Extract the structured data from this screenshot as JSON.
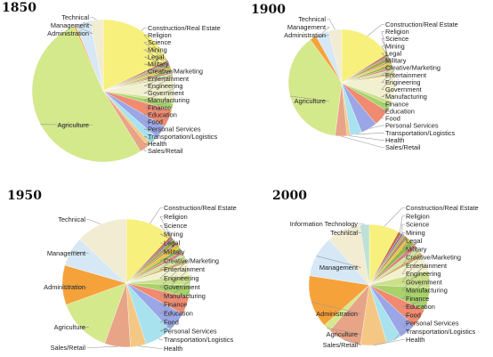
{
  "colors": {
    "Construction/Real Estate": "#f7f07c",
    "Religion": "#c46a2c",
    "Science": "#8c6ab4",
    "Mining": "#a7a73c",
    "Legal": "#b08f62",
    "Military": "#f0c030",
    "Creative/Marketing": "#8fb848",
    "Entertainment": "#e07c7c",
    "Engineering": "#cfe5a2",
    "Government": "#d4b56a",
    "Manufacturing": "#f2f1cf",
    "Finance": "#ccdf8a",
    "Education": "#a8d26a",
    "Food": "#f08a70",
    "Personal Services": "#9aa6e6",
    "Transportation/Logistics": "#a8e2ef",
    "Health": "#f4c884",
    "Sales/Retail": "#e8a486",
    "Agriculture": "#d4e88c",
    "Administration": "#f6a23a",
    "Management": "#d6e8f6",
    "Technical": "#f1ecd2",
    "Information Technology": "#bfe0d8"
  },
  "chart_data": [
    {
      "type": "pie",
      "title": "1850",
      "slices": [
        {
          "label": "Construction/Real Estate",
          "value": 18.0
        },
        {
          "label": "Religion",
          "value": 0.5
        },
        {
          "label": "Science",
          "value": 0.3
        },
        {
          "label": "Mining",
          "value": 0.5
        },
        {
          "label": "Legal",
          "value": 0.4
        },
        {
          "label": "Military",
          "value": 0.5
        },
        {
          "label": "Creative/Marketing",
          "value": 0.5
        },
        {
          "label": "Entertainment",
          "value": 0.4
        },
        {
          "label": "Engineering",
          "value": 0.5
        },
        {
          "label": "Government",
          "value": 0.4
        },
        {
          "label": "Manufacturing",
          "value": 5.0
        },
        {
          "label": "Finance",
          "value": 0.9
        },
        {
          "label": "Education",
          "value": 1.5
        },
        {
          "label": "Food",
          "value": 4.0
        },
        {
          "label": "Personal Services",
          "value": 3.0
        },
        {
          "label": "Transportation/Logistics",
          "value": 2.0
        },
        {
          "label": "Health",
          "value": 0.8
        },
        {
          "label": "Sales/Retail",
          "value": 2.0
        },
        {
          "label": "Agriculture",
          "value": 52.0
        },
        {
          "label": "Administration",
          "value": 0.4
        },
        {
          "label": "Management",
          "value": 3.5
        },
        {
          "label": "Technical",
          "value": 2.9
        }
      ],
      "labels_right": [
        "Construction/Real Estate",
        "Religion",
        "Science",
        "Mining",
        "Legal",
        "Military",
        "Creative/Marketing",
        "Entertainment",
        "Engineering",
        "Government",
        "Manufacturing",
        "Finance",
        "Education",
        "Food",
        "Personal Services",
        "Transportation/Logistics",
        "Health",
        "Sales/Retail"
      ],
      "labels_left": [
        "Technical",
        "Management",
        "Administration",
        "Agriculture"
      ]
    },
    {
      "type": "pie",
      "title": "1900",
      "slices": [
        {
          "label": "Construction/Real Estate",
          "value": 16.0
        },
        {
          "label": "Religion",
          "value": 0.6
        },
        {
          "label": "Science",
          "value": 0.4
        },
        {
          "label": "Mining",
          "value": 1.2
        },
        {
          "label": "Legal",
          "value": 0.5
        },
        {
          "label": "Military",
          "value": 0.6
        },
        {
          "label": "Creative/Marketing",
          "value": 0.9
        },
        {
          "label": "Entertainment",
          "value": 0.7
        },
        {
          "label": "Engineering",
          "value": 1.0
        },
        {
          "label": "Government",
          "value": 0.8
        },
        {
          "label": "Manufacturing",
          "value": 8.0
        },
        {
          "label": "Finance",
          "value": 1.2
        },
        {
          "label": "Education",
          "value": 2.0
        },
        {
          "label": "Food",
          "value": 5.0
        },
        {
          "label": "Personal Services",
          "value": 5.0
        },
        {
          "label": "Transportation/Logistics",
          "value": 3.5
        },
        {
          "label": "Health",
          "value": 1.0
        },
        {
          "label": "Sales/Retail",
          "value": 3.6
        },
        {
          "label": "Agriculture",
          "value": 38.0
        },
        {
          "label": "Administration",
          "value": 2.0
        },
        {
          "label": "Management",
          "value": 4.0
        },
        {
          "label": "Technical",
          "value": 4.0
        }
      ],
      "labels_right": [
        "Construction/Real Estate",
        "Religion",
        "Science",
        "Mining",
        "Legal",
        "Military",
        "Creative/Marketing",
        "Entertainment",
        "Engineering",
        "Government",
        "Manufacturing",
        "Finance",
        "Education",
        "Food",
        "Personal Services",
        "Transportation/Logistics",
        "Health",
        "Sales/Retail"
      ],
      "labels_left": [
        "Technical",
        "Management",
        "Administration",
        "Agriculture"
      ]
    },
    {
      "type": "pie",
      "title": "1950",
      "slices": [
        {
          "label": "Construction/Real Estate",
          "value": 12.0
        },
        {
          "label": "Religion",
          "value": 0.6
        },
        {
          "label": "Science",
          "value": 0.5
        },
        {
          "label": "Mining",
          "value": 1.0
        },
        {
          "label": "Legal",
          "value": 0.6
        },
        {
          "label": "Military",
          "value": 1.0
        },
        {
          "label": "Creative/Marketing",
          "value": 1.0
        },
        {
          "label": "Entertainment",
          "value": 0.8
        },
        {
          "label": "Engineering",
          "value": 1.5
        },
        {
          "label": "Government",
          "value": 1.0
        },
        {
          "label": "Manufacturing",
          "value": 3.0
        },
        {
          "label": "Finance",
          "value": 2.5
        },
        {
          "label": "Education",
          "value": 3.0
        },
        {
          "label": "Food",
          "value": 4.5
        },
        {
          "label": "Personal Services",
          "value": 5.0
        },
        {
          "label": "Transportation/Logistics",
          "value": 7.0
        },
        {
          "label": "Health",
          "value": 4.0
        },
        {
          "label": "Sales/Retail",
          "value": 6.5
        },
        {
          "label": "Agriculture",
          "value": 14.0
        },
        {
          "label": "Administration",
          "value": 10.0
        },
        {
          "label": "Management",
          "value": 7.5
        },
        {
          "label": "Technical",
          "value": 13.0
        }
      ],
      "labels_right": [
        "Construction/Real Estate",
        "Religion",
        "Science",
        "Mining",
        "Legal",
        "Military",
        "Creative/Marketing",
        "Entertainment",
        "Engineering",
        "Government",
        "Manufacturing",
        "Finance",
        "Education",
        "Food",
        "Personal Services",
        "Transportation/Logistics",
        "Health"
      ],
      "labels_left": [
        "Technical",
        "Management",
        "Administration",
        "Agriculture",
        "Sales/Retail"
      ]
    },
    {
      "type": "pie",
      "title": "2000",
      "slices": [
        {
          "label": "Construction/Real Estate",
          "value": 8.0
        },
        {
          "label": "Religion",
          "value": 0.8
        },
        {
          "label": "Science",
          "value": 0.6
        },
        {
          "label": "Mining",
          "value": 0.5
        },
        {
          "label": "Legal",
          "value": 1.0
        },
        {
          "label": "Military",
          "value": 0.8
        },
        {
          "label": "Creative/Marketing",
          "value": 1.5
        },
        {
          "label": "Entertainment",
          "value": 1.2
        },
        {
          "label": "Engineering",
          "value": 1.5
        },
        {
          "label": "Government",
          "value": 1.3
        },
        {
          "label": "Manufacturing",
          "value": 4.0
        },
        {
          "label": "Finance",
          "value": 4.5
        },
        {
          "label": "Education",
          "value": 6.0
        },
        {
          "label": "Food",
          "value": 5.0
        },
        {
          "label": "Personal Services",
          "value": 4.5
        },
        {
          "label": "Transportation/Logistics",
          "value": 4.0
        },
        {
          "label": "Health",
          "value": 7.0
        },
        {
          "label": "Sales/Retail",
          "value": 9.0
        },
        {
          "label": "Agriculture",
          "value": 2.0
        },
        {
          "label": "Administration",
          "value": 14.0
        },
        {
          "label": "Management",
          "value": 11.0
        },
        {
          "label": "Technical",
          "value": 9.0
        },
        {
          "label": "Information Technology",
          "value": 2.5
        }
      ],
      "labels_right": [
        "Construction/Real Estate",
        "Religion",
        "Science",
        "Mining",
        "Legal",
        "Military",
        "Creative/Marketing",
        "Entertainment",
        "Engineering",
        "Government",
        "Manufacturing",
        "Finance",
        "Education",
        "Food",
        "Personal Services",
        "Transportation/Logistics",
        "Health"
      ],
      "labels_left": [
        "Information Technology",
        "Technical",
        "Management",
        "Administration",
        "Agriculture",
        "Sales/Retail"
      ]
    }
  ]
}
